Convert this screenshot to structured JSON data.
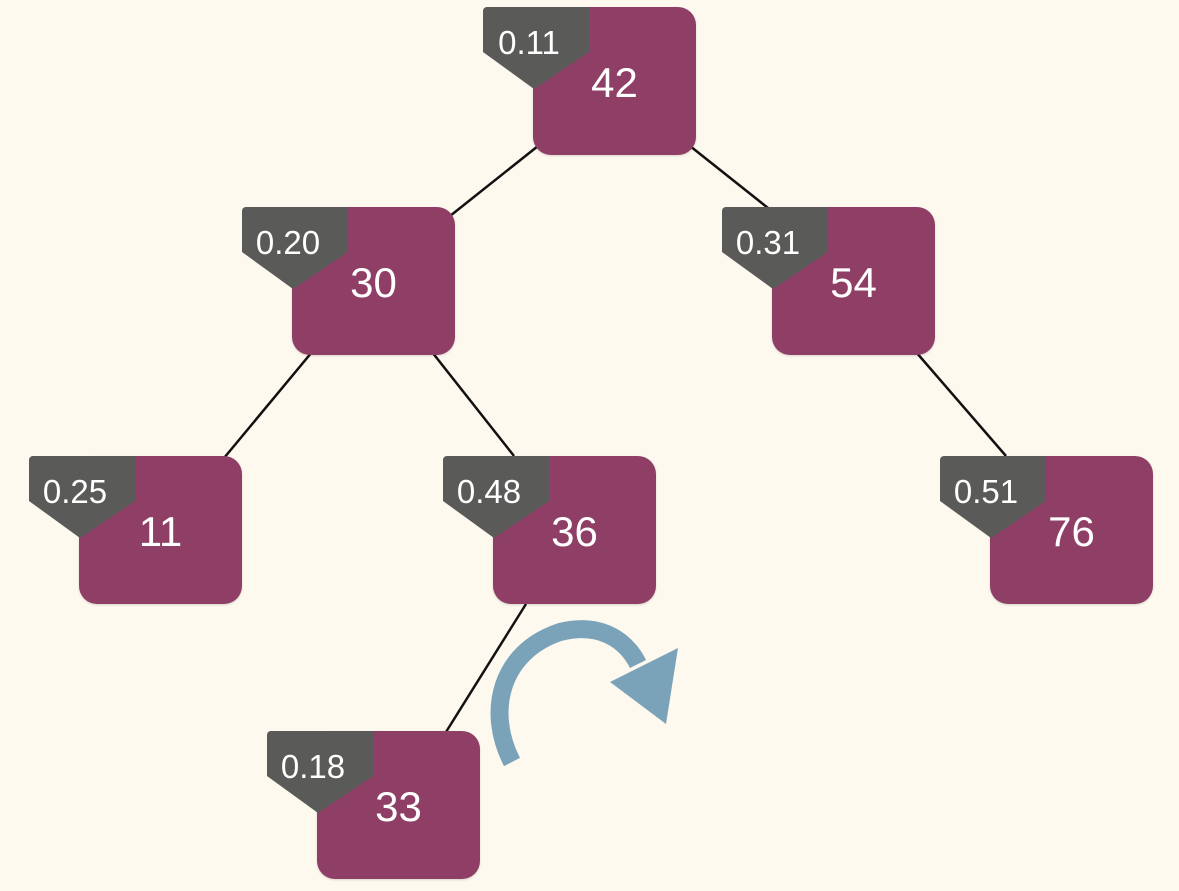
{
  "diagram": {
    "nodes": [
      {
        "id": "n42",
        "key": "42",
        "priority": "0.11"
      },
      {
        "id": "n30",
        "key": "30",
        "priority": "0.20"
      },
      {
        "id": "n54",
        "key": "54",
        "priority": "0.31"
      },
      {
        "id": "n11",
        "key": "11",
        "priority": "0.25"
      },
      {
        "id": "n36",
        "key": "36",
        "priority": "0.48"
      },
      {
        "id": "n76",
        "key": "76",
        "priority": "0.51"
      },
      {
        "id": "n33",
        "key": "33",
        "priority": "0.18"
      }
    ],
    "edges": [
      {
        "from": "n42",
        "to": "n30"
      },
      {
        "from": "n42",
        "to": "n54"
      },
      {
        "from": "n30",
        "to": "n11"
      },
      {
        "from": "n30",
        "to": "n36"
      },
      {
        "from": "n54",
        "to": "n76"
      },
      {
        "from": "n36",
        "to": "n33"
      }
    ],
    "annotation": {
      "icon": "rotate-right-arrow-icon",
      "meaning": ""
    },
    "colors": {
      "background": "#fdf9ef",
      "key_box": "#8f3f66",
      "priority_tag": "#5a5a58",
      "text": "#ffffff",
      "edge": "#111111",
      "arrow": "#7aa3ba"
    }
  }
}
